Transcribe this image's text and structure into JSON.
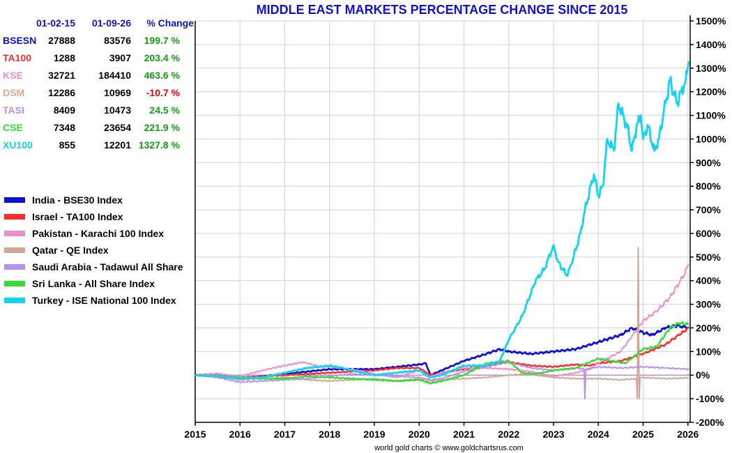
{
  "chart_data": {
    "type": "line",
    "title": "MIDDLE EAST MARKETS PERCENTAGE CHANGE SINCE 2015",
    "credit": "world gold charts © www.goldchartsrus.com",
    "xlabel": "",
    "ylabel": "",
    "xlim": [
      2015,
      2026.05
    ],
    "ylim": [
      -200,
      1500
    ],
    "x_ticks": [
      "2015",
      "2016",
      "2017",
      "2018",
      "2019",
      "2020",
      "2021",
      "2022",
      "2023",
      "2024",
      "2025",
      "2026"
    ],
    "y_ticks": [
      1500,
      1400,
      1300,
      1200,
      1100,
      1000,
      900,
      800,
      700,
      600,
      500,
      400,
      300,
      200,
      100,
      0,
      -100,
      -200
    ],
    "y_tick_labels": [
      "1500%",
      "1400%",
      "1300%",
      "1200%",
      "1100%",
      "1000%",
      "900%",
      "800%",
      "700%",
      "600%",
      "500%",
      "400%",
      "300%",
      "200%",
      "100%",
      "0%",
      "-100%",
      "-200%"
    ],
    "grid": true,
    "legend_position": "left",
    "table": {
      "headers": [
        "01-02-15",
        "01-09-26",
        "% Change"
      ],
      "rows": [
        {
          "code": "BSESN",
          "start": "27888",
          "end": "83576",
          "change": "199.7 %",
          "code_color": "#0a10d8",
          "change_color": "#10a010"
        },
        {
          "code": "TA100",
          "start": "1288",
          "end": "3907",
          "change": "203.4 %",
          "code_color": "#ff2b2b",
          "change_color": "#10a010"
        },
        {
          "code": "KSE",
          "start": "32721",
          "end": "184410",
          "change": "463.6 %",
          "code_color": "#f08cc8",
          "change_color": "#10a010"
        },
        {
          "code": "DSM",
          "start": "12286",
          "end": "10969",
          "change": "-10.7 %",
          "code_color": "#d2a894",
          "change_color": "#ee0000"
        },
        {
          "code": "TASI",
          "start": "8409",
          "end": "10473",
          "change": "24.5 %",
          "code_color": "#b890ee",
          "change_color": "#10a010"
        },
        {
          "code": "CSE",
          "start": "7348",
          "end": "23654",
          "change": "221.9 %",
          "code_color": "#33dd33",
          "change_color": "#10a010"
        },
        {
          "code": "XU100",
          "start": "855",
          "end": "12201",
          "change": "1327.8 %",
          "code_color": "#10d4f4",
          "change_color": "#10a010"
        }
      ]
    },
    "series": [
      {
        "name": "India - BSE30 Index",
        "color": "#0a10d8",
        "width": 2.6,
        "x": [
          2015,
          2015.5,
          2016,
          2016.5,
          2017,
          2017.5,
          2018,
          2018.5,
          2019,
          2019.5,
          2020,
          2020.15,
          2020.25,
          2020.5,
          2021,
          2021.5,
          2021.8,
          2022,
          2022.5,
          2023,
          2023.5,
          2024,
          2024.5,
          2024.75,
          2025,
          2025.2,
          2025.5,
          2025.75,
          2026.02
        ],
        "y": [
          0,
          -5,
          -15,
          -5,
          5,
          15,
          25,
          25,
          25,
          35,
          45,
          50,
          0,
          20,
          60,
          90,
          110,
          100,
          90,
          100,
          110,
          140,
          170,
          200,
          180,
          170,
          200,
          210,
          200
        ]
      },
      {
        "name": "Israel - TA100 Index",
        "color": "#ff2b2b",
        "width": 2.4,
        "x": [
          2015,
          2015.5,
          2016,
          2016.5,
          2017,
          2017.5,
          2018,
          2018.5,
          2019,
          2019.5,
          2020,
          2020.25,
          2020.5,
          2021,
          2021.5,
          2022,
          2022.5,
          2023,
          2023.5,
          2023.8,
          2024,
          2024.5,
          2025,
          2025.5,
          2025.8,
          2026.02
        ],
        "y": [
          0,
          5,
          -10,
          -5,
          0,
          5,
          10,
          15,
          20,
          30,
          30,
          0,
          10,
          25,
          40,
          55,
          40,
          35,
          45,
          40,
          50,
          60,
          90,
          130,
          170,
          200
        ]
      },
      {
        "name": "Pakistan - Karachi 100 Index",
        "color": "#f08cc8",
        "width": 2,
        "x": [
          2015,
          2015.5,
          2016,
          2016.5,
          2017,
          2017.4,
          2017.8,
          2018,
          2018.5,
          2019,
          2019.5,
          2020,
          2020.2,
          2020.5,
          2021,
          2021.5,
          2022,
          2022.5,
          2023,
          2023.5,
          2023.8,
          2024,
          2024.5,
          2025,
          2025.3,
          2025.6,
          2025.9,
          2026.02
        ],
        "y": [
          0,
          5,
          -5,
          20,
          40,
          55,
          35,
          35,
          25,
          5,
          -10,
          20,
          -10,
          10,
          30,
          30,
          25,
          15,
          -5,
          10,
          25,
          50,
          100,
          230,
          270,
          330,
          420,
          470
        ]
      },
      {
        "name": "Qatar - QE Index",
        "color": "#d2a894",
        "width": 2,
        "x": [
          2015,
          2015.5,
          2016,
          2016.5,
          2017,
          2017.5,
          2018,
          2018.5,
          2019,
          2019.5,
          2020,
          2020.25,
          2020.5,
          2021,
          2021.5,
          2022,
          2022.4,
          2022.8,
          2023,
          2023.5,
          2024,
          2024.5,
          2024.85,
          2024.87,
          2024.89,
          2024.91,
          2024.93,
          2025,
          2025.5,
          2026.02
        ],
        "y": [
          0,
          -5,
          -20,
          -15,
          -10,
          -20,
          -25,
          -20,
          -15,
          -25,
          -15,
          -25,
          -20,
          -15,
          -10,
          0,
          5,
          -5,
          -10,
          -15,
          -15,
          -20,
          -15,
          -100,
          540,
          -100,
          -10,
          -10,
          -15,
          -12
        ]
      },
      {
        "name": "Saudi Arabia - Tadawul All Share",
        "color": "#b890ee",
        "width": 2,
        "x": [
          2015,
          2015.5,
          2016,
          2016.5,
          2017,
          2017.5,
          2018,
          2018.5,
          2019,
          2019.5,
          2020,
          2020.25,
          2020.5,
          2021,
          2021.5,
          2022,
          2022.5,
          2023,
          2023.5,
          2023.68,
          2023.7,
          2023.72,
          2023.74,
          2024,
          2024.5,
          2025,
          2025.5,
          2026.02
        ],
        "y": [
          0,
          -10,
          -30,
          -25,
          -20,
          -15,
          -5,
          5,
          0,
          -5,
          -10,
          -20,
          -15,
          15,
          35,
          55,
          30,
          20,
          30,
          25,
          -100,
          25,
          25,
          35,
          30,
          35,
          30,
          25
        ]
      },
      {
        "name": "Sri Lanka - All Share Index",
        "color": "#33dd33",
        "width": 2.4,
        "x": [
          2015,
          2015.5,
          2016,
          2016.5,
          2017,
          2017.5,
          2018,
          2018.5,
          2019,
          2019.5,
          2020,
          2020.25,
          2020.5,
          2021,
          2021.5,
          2022,
          2022.3,
          2022.6,
          2023,
          2023.5,
          2024,
          2024.3,
          2024.6,
          2024.8,
          2025,
          2025.3,
          2025.6,
          2025.8,
          2026.02
        ],
        "y": [
          0,
          -5,
          -10,
          -15,
          -15,
          -5,
          -10,
          -15,
          -20,
          -25,
          -20,
          -35,
          -25,
          0,
          50,
          60,
          10,
          5,
          20,
          30,
          70,
          60,
          50,
          80,
          110,
          120,
          200,
          220,
          215
        ]
      },
      {
        "name": "Turkey - ISE National 100 Index",
        "color": "#10d4f4",
        "width": 2.8,
        "x": [
          2015,
          2015.5,
          2016,
          2016.5,
          2017,
          2017.5,
          2018,
          2018.3,
          2018.5,
          2019,
          2019.5,
          2020,
          2020.25,
          2020.5,
          2021,
          2021.5,
          2021.8,
          2022,
          2022.3,
          2022.6,
          2022.8,
          2023,
          2023.1,
          2023.3,
          2023.4,
          2023.6,
          2023.7,
          2023.9,
          2024,
          2024.1,
          2024.2,
          2024.35,
          2024.45,
          2024.55,
          2024.65,
          2024.75,
          2024.85,
          2024.95,
          2025,
          2025.1,
          2025.25,
          2025.35,
          2025.45,
          2025.6,
          2025.75,
          2025.85,
          2025.95,
          2026.02
        ],
        "y": [
          0,
          -5,
          -15,
          -10,
          10,
          30,
          40,
          30,
          20,
          0,
          10,
          20,
          -10,
          0,
          40,
          40,
          60,
          150,
          250,
          400,
          450,
          550,
          480,
          420,
          470,
          600,
          700,
          850,
          760,
          800,
          1000,
          950,
          1150,
          1100,
          1050,
          950,
          1050,
          1100,
          1000,
          1060,
          950,
          1000,
          1100,
          1250,
          1150,
          1200,
          1250,
          1330
        ]
      }
    ]
  }
}
